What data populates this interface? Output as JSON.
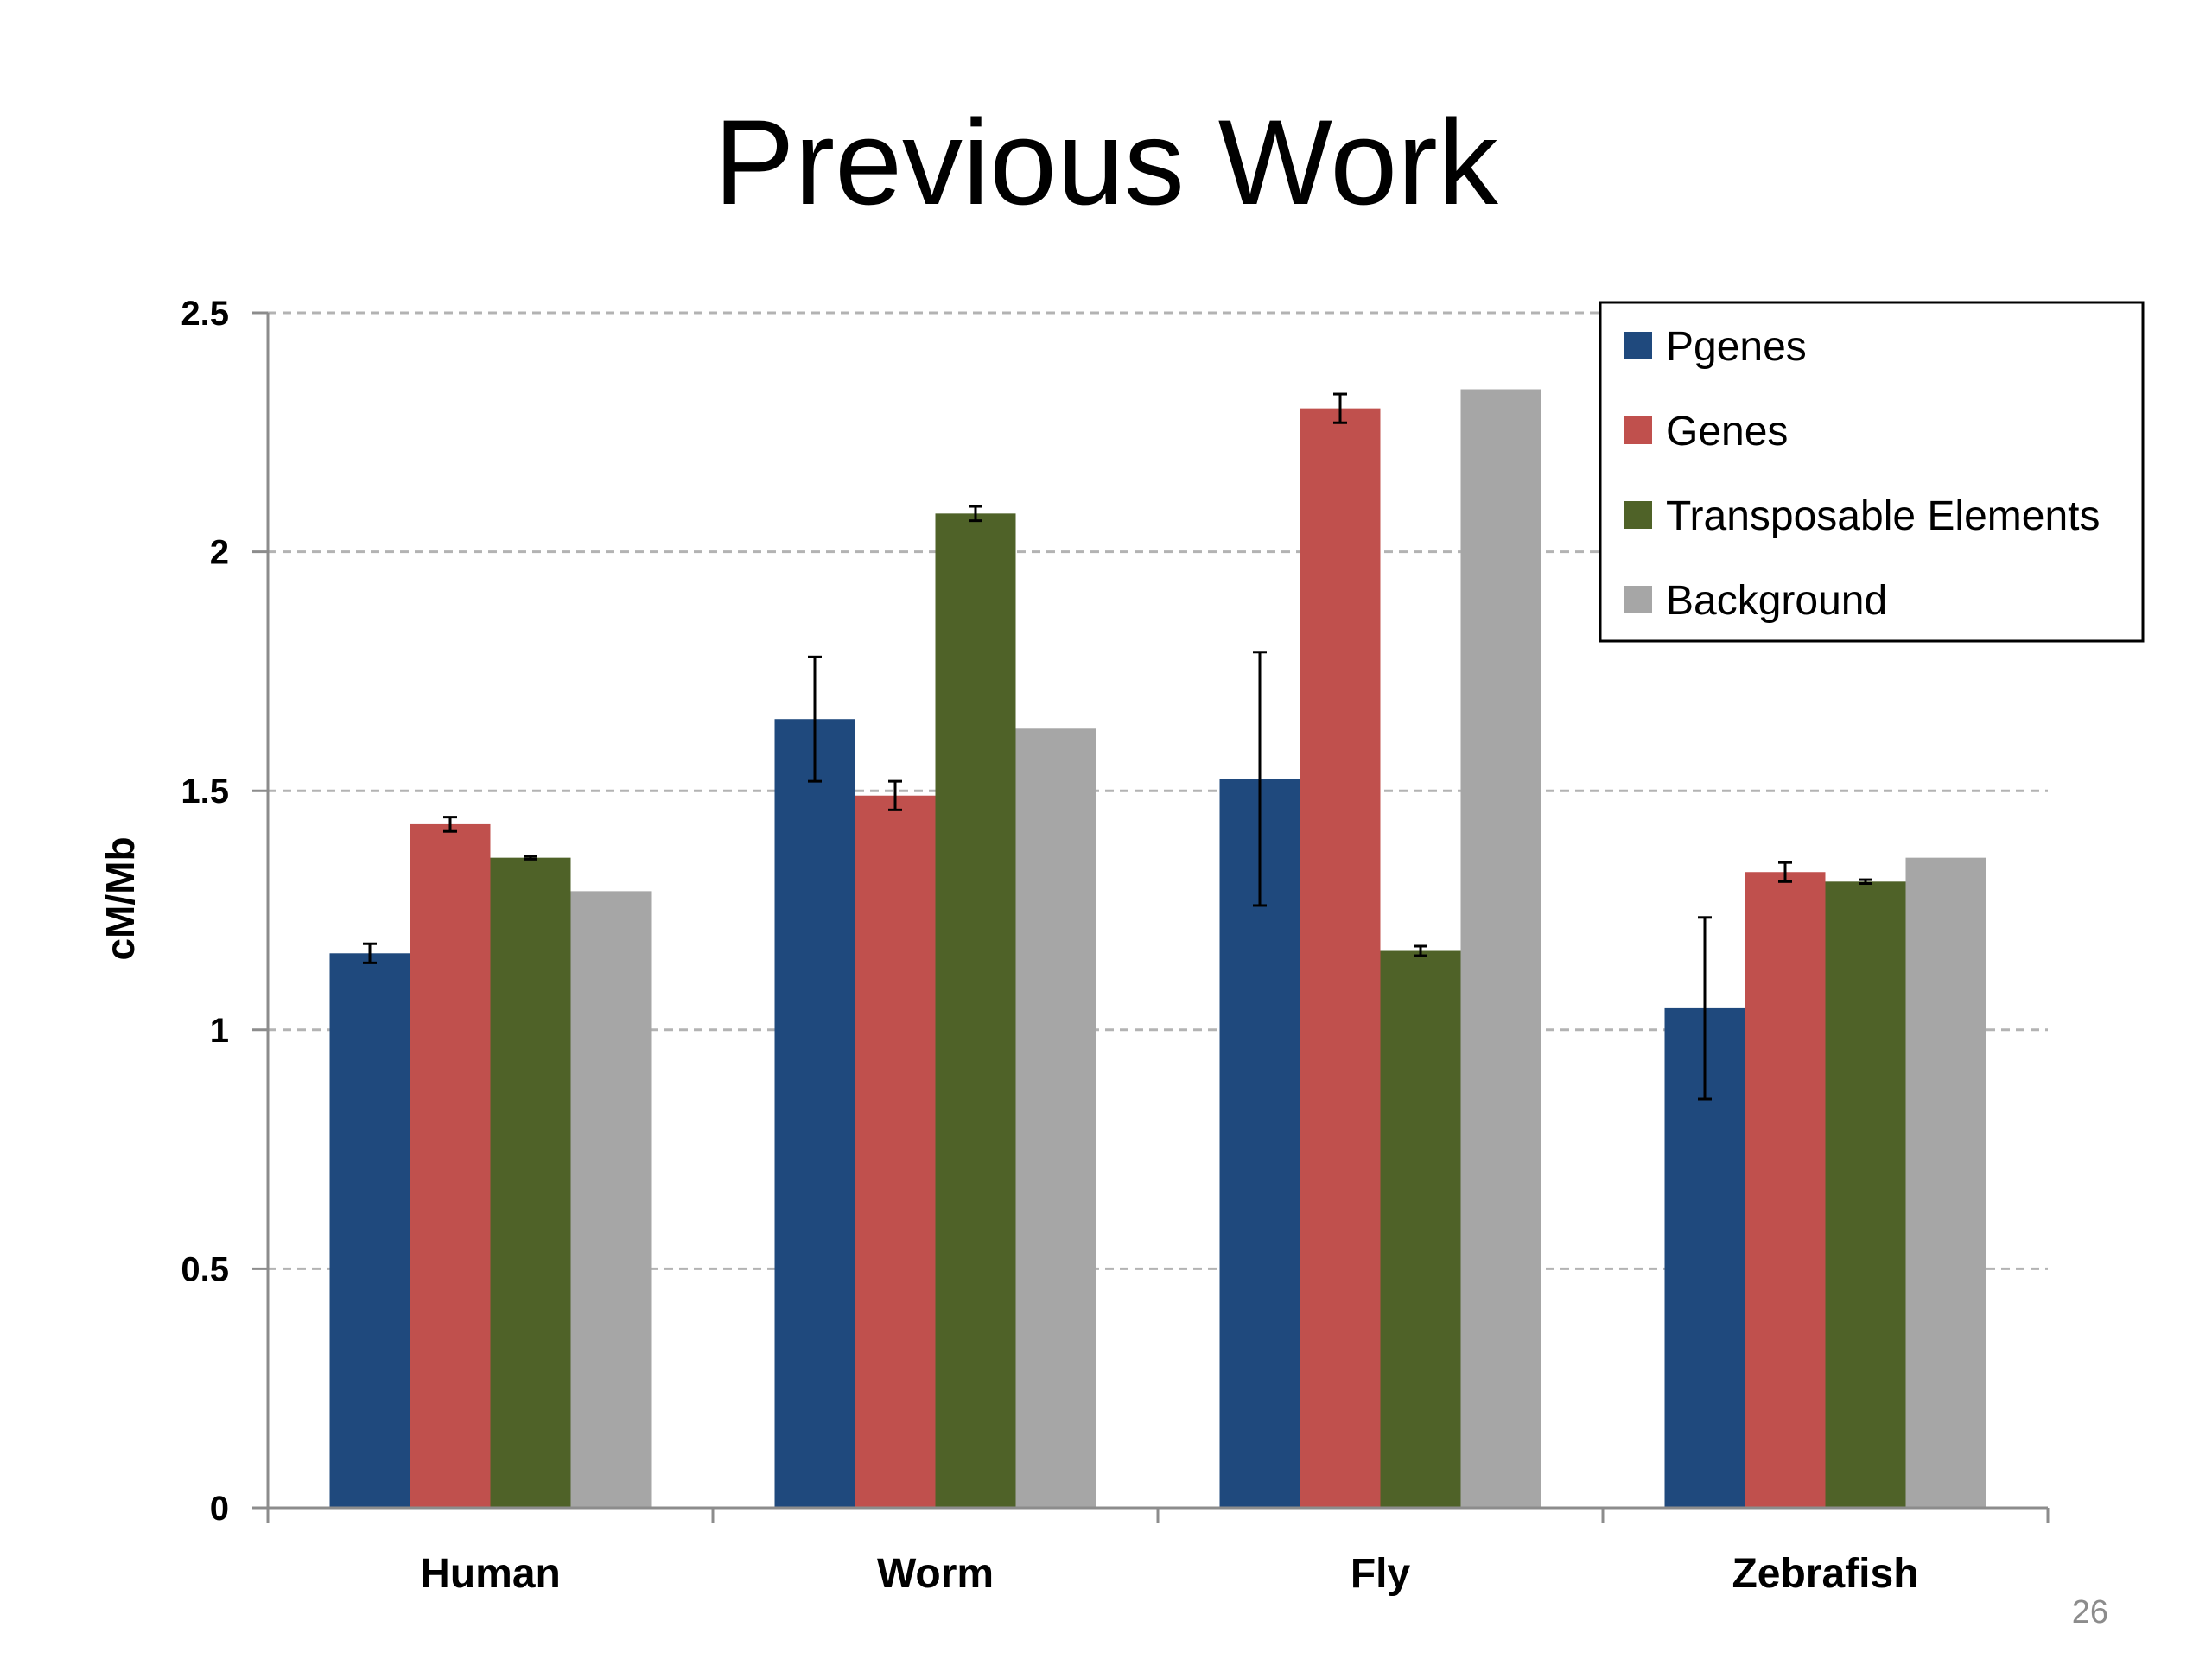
{
  "slide": {
    "title": "Previous Work",
    "page_number": "26"
  },
  "chart_data": {
    "type": "bar",
    "title": "",
    "xlabel": "",
    "ylabel": "cM/Mb",
    "ylim": [
      0,
      2.5
    ],
    "yticks": [
      "0",
      "0.5",
      "1",
      "1.5",
      "2",
      "2.5"
    ],
    "grid": true,
    "legend_position": "top-right",
    "categories": [
      "Human",
      "Worm",
      "Fly",
      "Zebrafish"
    ],
    "series": [
      {
        "name": "Pgenes",
        "color": "#1F497D",
        "values": [
          1.16,
          1.65,
          1.525,
          1.045
        ],
        "errors": [
          0.02,
          0.13,
          0.265,
          0.19
        ]
      },
      {
        "name": "Genes",
        "color": "#C0504D",
        "values": [
          1.43,
          1.49,
          2.3,
          1.33
        ],
        "errors": [
          0.015,
          0.03,
          0.03,
          0.02
        ]
      },
      {
        "name": "Transposable Elements",
        "color": "#4F6228",
        "values": [
          1.36,
          2.08,
          1.165,
          1.31
        ],
        "errors": [
          0.003,
          0.015,
          0.01,
          0.004
        ]
      },
      {
        "name": "Background",
        "color": "#A6A6A6",
        "values": [
          1.29,
          1.63,
          2.34,
          1.36
        ],
        "errors": [
          0,
          0,
          0,
          0
        ]
      }
    ]
  }
}
